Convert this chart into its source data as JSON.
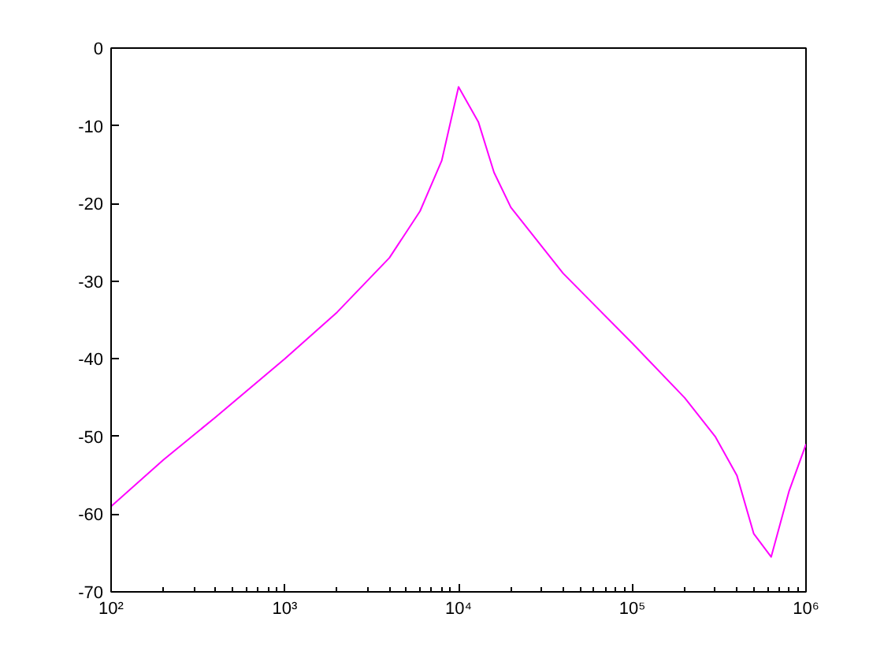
{
  "chart_data": {
    "type": "line",
    "log": "x",
    "grid": false,
    "x": [
      100,
      200,
      400,
      1000,
      2000,
      4000,
      6000,
      8000,
      10000,
      13000,
      16000,
      20000,
      40000,
      100000,
      200000,
      300000,
      400000,
      500000,
      630000,
      800000,
      1000000
    ],
    "series": [
      {
        "color": "#ff00ff",
        "values": [
          -59,
          -53,
          -47.5,
          -40,
          -34,
          -27,
          -21,
          -14.5,
          -5,
          -9.5,
          -16,
          -20.5,
          -29,
          -38,
          -45,
          -50,
          -55,
          -62.5,
          -65.5,
          -57,
          -51
        ]
      }
    ],
    "xlim": [
      100,
      1000000
    ],
    "xticks": [
      {
        "value": 100,
        "label": "10²"
      },
      {
        "value": 1000,
        "label": "10³"
      },
      {
        "value": 10000,
        "label": "10⁴"
      },
      {
        "value": 100000,
        "label": "10⁵"
      },
      {
        "value": 1000000,
        "label": "10⁶"
      }
    ],
    "ylim": [
      -70,
      0
    ],
    "yticks": [
      -70,
      -60,
      -50,
      -40,
      -30,
      -20,
      -10,
      0
    ]
  }
}
